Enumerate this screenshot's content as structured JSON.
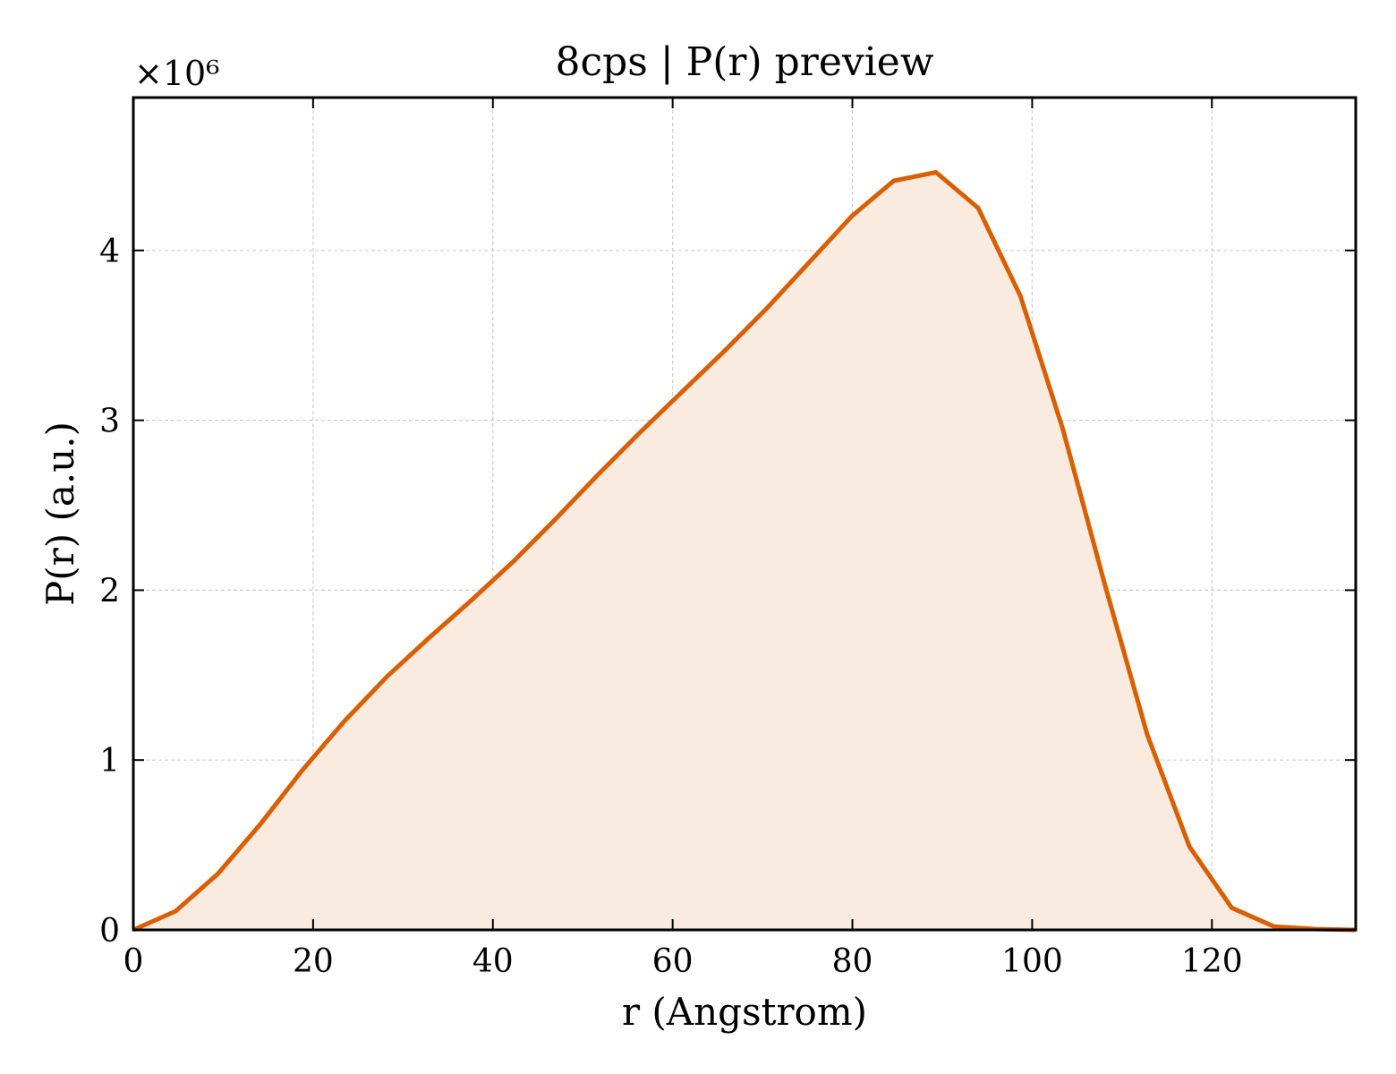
{
  "chart_data": {
    "type": "area",
    "title": "8cps | P(r) preview",
    "xlabel": "r (Angstrom)",
    "ylabel": "P(r) (a.u.)",
    "y_multiplier_label": "×10⁶",
    "xlim": [
      0,
      136
    ],
    "ylim": [
      0,
      4.9
    ],
    "y_scale_factor": 1000000,
    "x_ticks": [
      0,
      20,
      40,
      60,
      80,
      100,
      120
    ],
    "y_ticks": [
      0,
      1,
      2,
      3,
      4
    ],
    "x_tick_labels": [
      "0",
      "20",
      "40",
      "60",
      "80",
      "100",
      "120"
    ],
    "y_tick_labels": [
      "0",
      "1",
      "2",
      "3",
      "4"
    ],
    "grid": true,
    "line_color": "#d95f02",
    "fill_color": "#f9ebe0",
    "series": [
      {
        "x": [
          0,
          4.7,
          9.4,
          14.1,
          18.8,
          23.5,
          28.2,
          32.9,
          37.6,
          42.3,
          47.0,
          51.7,
          56.4,
          61.1,
          65.8,
          70.5,
          75.2,
          79.9,
          84.6,
          89.3,
          94.0,
          98.7,
          103.4,
          108.1,
          112.8,
          117.5,
          122.2,
          126.9,
          131.6,
          136.0
        ],
        "y": [
          0.0,
          0.11,
          0.33,
          0.62,
          0.94,
          1.23,
          1.49,
          1.72,
          1.94,
          2.17,
          2.42,
          2.68,
          2.93,
          3.17,
          3.41,
          3.66,
          3.93,
          4.2,
          4.41,
          4.46,
          4.25,
          3.73,
          2.95,
          2.03,
          1.15,
          0.49,
          0.13,
          0.02,
          0.005,
          0.0
        ]
      }
    ]
  }
}
